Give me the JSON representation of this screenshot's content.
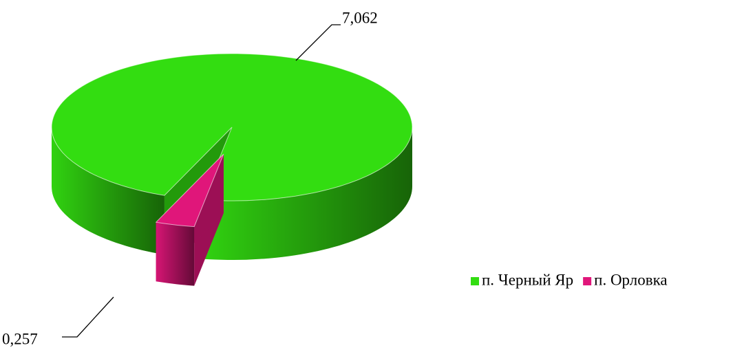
{
  "chart_data": {
    "type": "pie3d",
    "categories": [
      "п. Черный Яр",
      "п. Орловка"
    ],
    "values": [
      7.062,
      0.257
    ],
    "value_labels": [
      "7,062",
      "0,257"
    ],
    "colors": [
      "#33dd11",
      "#e0167a"
    ],
    "legend": "right"
  }
}
